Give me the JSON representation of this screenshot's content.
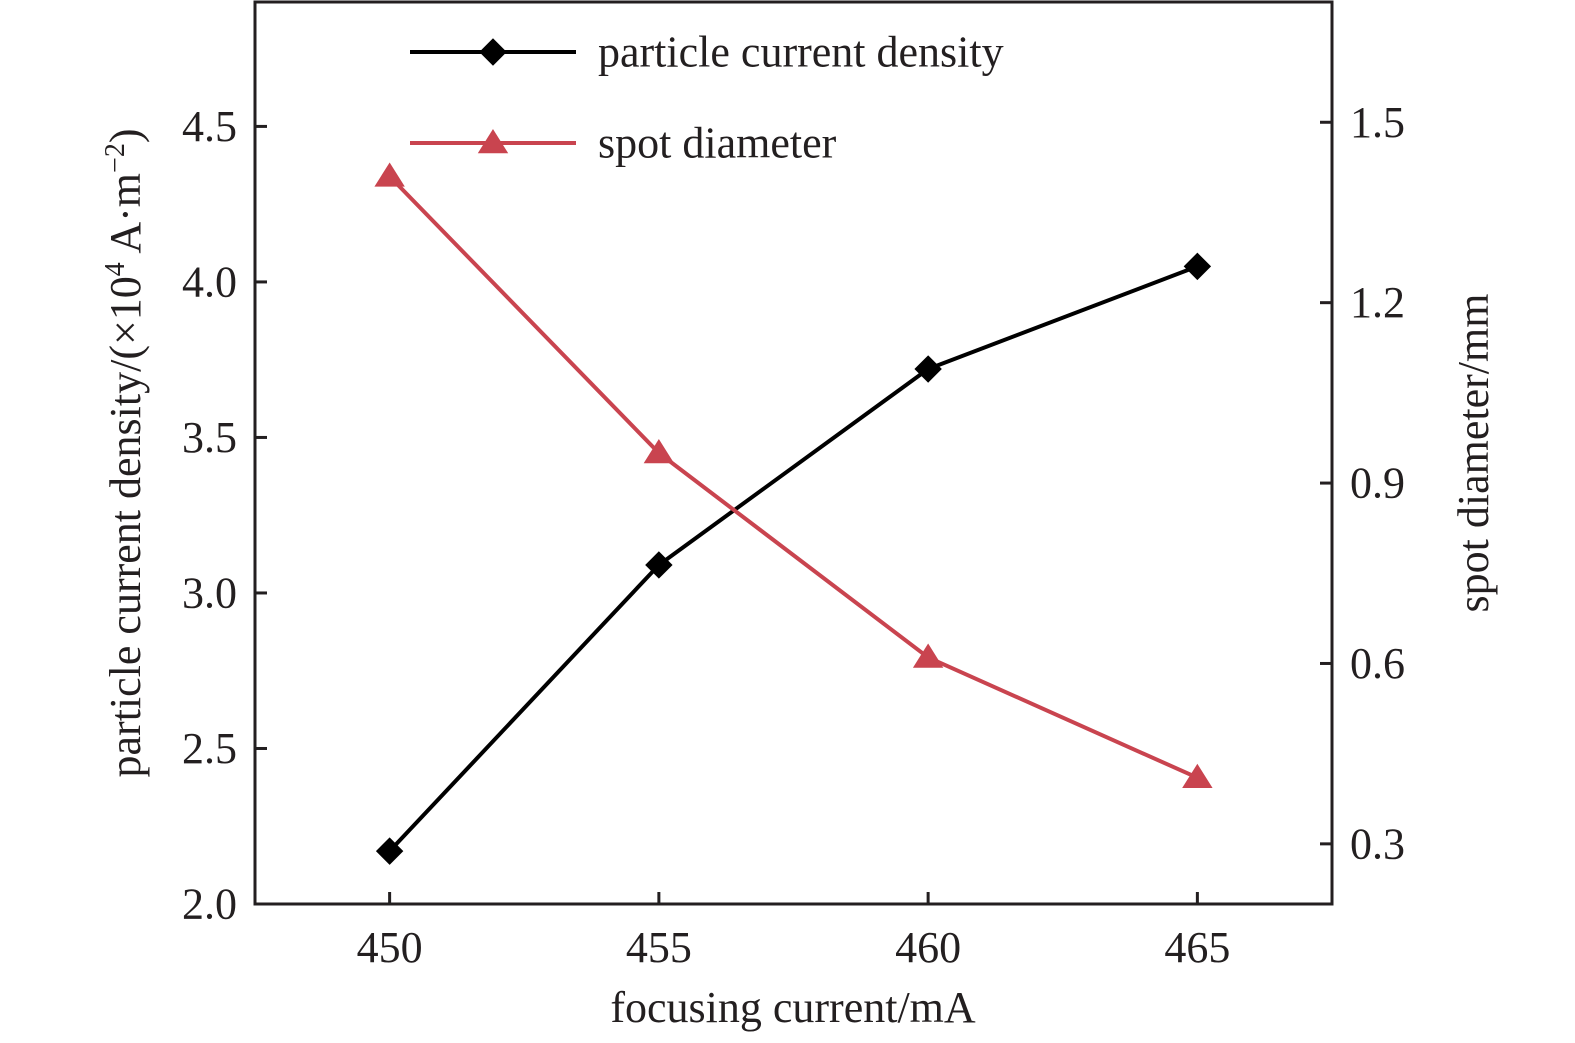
{
  "chart_data": {
    "type": "line",
    "xlabel": "focusing current/mA",
    "ylabel_left": {
      "prefix": "particle current density/(×10",
      "exp1": "4",
      "mid": " A·m",
      "exp2": "−2",
      "suffix": ")"
    },
    "ylabel_right": "spot diameter/mm",
    "x": [
      450,
      455,
      460,
      465
    ],
    "xlim": [
      447.5,
      467.5
    ],
    "x_ticks": [
      "450",
      "455",
      "460",
      "465"
    ],
    "ylim_left": [
      2.0,
      4.9
    ],
    "y_ticks_left": [
      "2.0",
      "2.5",
      "3.0",
      "3.5",
      "4.0",
      "4.5"
    ],
    "ylim_right": [
      0.2,
      1.7
    ],
    "y_ticks_right": [
      "0.3",
      "0.6",
      "0.9",
      "1.2",
      "1.5"
    ],
    "grid": false,
    "legend_position": "top",
    "series": [
      {
        "name": "particle current density",
        "axis": "left",
        "marker": "diamond",
        "color": "#000000",
        "values": [
          2.17,
          3.09,
          3.72,
          4.05
        ]
      },
      {
        "name": "spot diameter",
        "axis": "right",
        "marker": "triangle",
        "color": "#c9444f",
        "values": [
          1.41,
          0.95,
          0.61,
          0.41
        ]
      }
    ]
  }
}
